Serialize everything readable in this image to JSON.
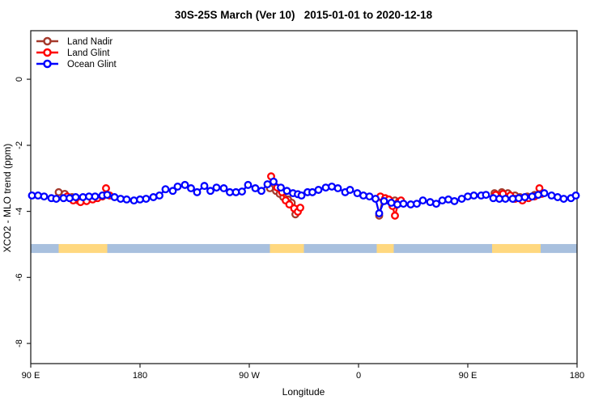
{
  "chart_data": {
    "type": "line",
    "title": "30S-25S March (Ver 10)   2015-01-01 to 2020-12-18",
    "xlabel": "Longitude",
    "ylabel": "XCO2 - MLO trend (ppm)",
    "x_axis": {
      "range": [
        90,
        540
      ],
      "ticks": [
        90,
        180,
        270,
        360,
        450,
        540
      ],
      "tick_labels": [
        "90 E",
        "180",
        "90 W",
        "0",
        "90 E",
        "180"
      ],
      "note": "longitude axis wraps eastward starting at 90E"
    },
    "y_axis": {
      "range": [
        -8.61,
        1.47
      ],
      "ticks": [
        0,
        -2,
        -4,
        -6,
        -8
      ],
      "tick_labels": [
        "0",
        "-2",
        "-4",
        "-6",
        "-8"
      ]
    },
    "grid": false,
    "legend_position": "top-left-inside",
    "series": [
      {
        "name": "Land Nadir",
        "color": "#A53A2C",
        "marker": "open-circle",
        "clusters": [
          [
            [
              113,
              -3.42
            ],
            [
              118,
              -3.47
            ],
            [
              124,
              -3.57
            ],
            [
              129,
              -3.67
            ],
            [
              135,
              -3.67
            ],
            [
              140,
              -3.62
            ]
          ],
          [
            [
              287,
              -3.3
            ],
            [
              292,
              -3.38
            ],
            [
              295,
              -3.47
            ],
            [
              298,
              -3.57
            ],
            [
              302,
              -3.64
            ],
            [
              305,
              -3.74
            ],
            [
              308,
              -4.09
            ]
          ],
          [
            [
              377,
              -4.13
            ],
            [
              380,
              -3.62
            ],
            [
              384,
              -3.67
            ],
            [
              387,
              -3.72
            ],
            [
              390,
              -3.67
            ],
            [
              393,
              -3.74
            ]
          ],
          [
            [
              472,
              -3.45
            ],
            [
              478,
              -3.42
            ],
            [
              483,
              -3.45
            ],
            [
              489,
              -3.52
            ],
            [
              493,
              -3.57
            ],
            [
              499,
              -3.55
            ],
            [
              505,
              -3.5
            ]
          ]
        ]
      },
      {
        "name": "Land Glint",
        "color": "#FF0000",
        "marker": "open-circle",
        "clusters": [
          [
            [
              120,
              -3.55
            ],
            [
              125,
              -3.67
            ],
            [
              131,
              -3.72
            ],
            [
              136,
              -3.69
            ],
            [
              141,
              -3.64
            ],
            [
              145,
              -3.6
            ],
            [
              149,
              -3.55
            ],
            [
              152,
              -3.3
            ],
            [
              155,
              -3.52
            ]
          ],
          [
            [
              288,
              -2.94
            ],
            [
              293,
              -3.28
            ],
            [
              297,
              -3.42
            ],
            [
              300,
              -3.67
            ],
            [
              303,
              -3.79
            ],
            [
              307,
              -3.91
            ],
            [
              310,
              -4.01
            ],
            [
              312,
              -3.89
            ]
          ],
          [
            [
              378,
              -3.55
            ],
            [
              382,
              -3.6
            ],
            [
              385,
              -3.64
            ],
            [
              388,
              -3.84
            ],
            [
              390,
              -4.13
            ],
            [
              393,
              -3.72
            ],
            [
              395,
              -3.67
            ]
          ],
          [
            [
              473,
              -3.5
            ],
            [
              479,
              -3.47
            ],
            [
              485,
              -3.52
            ],
            [
              489,
              -3.62
            ],
            [
              495,
              -3.67
            ],
            [
              500,
              -3.6
            ],
            [
              505,
              -3.55
            ],
            [
              509,
              -3.3
            ],
            [
              511,
              -3.47
            ]
          ]
        ]
      },
      {
        "name": "Ocean Glint",
        "color": "#0000FF",
        "marker": "open-circle",
        "clusters": [
          [
            [
              91,
              -3.52
            ],
            [
              96,
              -3.52
            ],
            [
              101,
              -3.55
            ],
            [
              107,
              -3.6
            ],
            [
              111,
              -3.62
            ],
            [
              117,
              -3.6
            ],
            [
              122,
              -3.6
            ],
            [
              127,
              -3.57
            ],
            [
              133,
              -3.57
            ],
            [
              138,
              -3.55
            ],
            [
              143,
              -3.55
            ],
            [
              149,
              -3.52
            ],
            [
              153,
              -3.5
            ],
            [
              159,
              -3.57
            ],
            [
              164,
              -3.62
            ],
            [
              169,
              -3.64
            ],
            [
              175,
              -3.67
            ],
            [
              180,
              -3.64
            ],
            [
              185,
              -3.62
            ],
            [
              191,
              -3.57
            ],
            [
              196,
              -3.52
            ],
            [
              201,
              -3.33
            ],
            [
              207,
              -3.38
            ],
            [
              211,
              -3.25
            ],
            [
              217,
              -3.2
            ],
            [
              222,
              -3.3
            ],
            [
              227,
              -3.42
            ],
            [
              233,
              -3.23
            ],
            [
              238,
              -3.38
            ],
            [
              243,
              -3.28
            ],
            [
              249,
              -3.3
            ],
            [
              254,
              -3.42
            ],
            [
              259,
              -3.42
            ],
            [
              264,
              -3.4
            ],
            [
              269,
              -3.2
            ],
            [
              275,
              -3.3
            ],
            [
              280,
              -3.38
            ],
            [
              285,
              -3.18
            ],
            [
              290,
              -3.1
            ],
            [
              296,
              -3.28
            ],
            [
              301,
              -3.38
            ],
            [
              306,
              -3.45
            ],
            [
              310,
              -3.48
            ],
            [
              313,
              -3.52
            ],
            [
              318,
              -3.42
            ],
            [
              322,
              -3.42
            ],
            [
              327,
              -3.35
            ],
            [
              333,
              -3.28
            ],
            [
              338,
              -3.25
            ],
            [
              343,
              -3.3
            ],
            [
              349,
              -3.42
            ],
            [
              353,
              -3.35
            ],
            [
              359,
              -3.45
            ],
            [
              364,
              -3.52
            ],
            [
              369,
              -3.55
            ],
            [
              374,
              -3.62
            ],
            [
              377,
              -4.06
            ],
            [
              381,
              -3.69
            ],
            [
              387,
              -3.74
            ],
            [
              392,
              -3.79
            ],
            [
              397,
              -3.77
            ],
            [
              403,
              -3.79
            ],
            [
              408,
              -3.77
            ],
            [
              413,
              -3.67
            ],
            [
              419,
              -3.72
            ],
            [
              424,
              -3.77
            ],
            [
              429,
              -3.67
            ],
            [
              434,
              -3.64
            ],
            [
              439,
              -3.69
            ],
            [
              445,
              -3.62
            ],
            [
              450,
              -3.55
            ],
            [
              455,
              -3.52
            ],
            [
              461,
              -3.52
            ],
            [
              465,
              -3.5
            ],
            [
              471,
              -3.6
            ],
            [
              476,
              -3.62
            ],
            [
              481,
              -3.62
            ],
            [
              487,
              -3.62
            ],
            [
              492,
              -3.6
            ],
            [
              497,
              -3.57
            ],
            [
              503,
              -3.55
            ],
            [
              508,
              -3.5
            ],
            [
              513,
              -3.45
            ],
            [
              519,
              -3.52
            ],
            [
              524,
              -3.57
            ],
            [
              529,
              -3.62
            ],
            [
              535,
              -3.6
            ],
            [
              539,
              -3.52
            ]
          ]
        ]
      }
    ],
    "surface_band": {
      "top": -4.99,
      "bottom": -5.26,
      "ocean_color": "#A8C0DE",
      "land_color": "#FFD87F",
      "segments": [
        {
          "from": 90,
          "to": 113,
          "type": "ocean"
        },
        {
          "from": 113,
          "to": 153,
          "type": "land"
        },
        {
          "from": 153,
          "to": 287,
          "type": "ocean"
        },
        {
          "from": 287,
          "to": 315,
          "type": "land"
        },
        {
          "from": 315,
          "to": 375,
          "type": "ocean"
        },
        {
          "from": 375,
          "to": 389,
          "type": "land"
        },
        {
          "from": 389,
          "to": 470,
          "type": "ocean"
        },
        {
          "from": 470,
          "to": 510,
          "type": "land"
        },
        {
          "from": 510,
          "to": 540,
          "type": "ocean"
        }
      ]
    },
    "legend": {
      "entries": [
        {
          "label": "Land Nadir",
          "color": "#A53A2C"
        },
        {
          "label": "Land Glint",
          "color": "#FF0000"
        },
        {
          "label": "Ocean Glint",
          "color": "#0000FF"
        }
      ]
    }
  }
}
